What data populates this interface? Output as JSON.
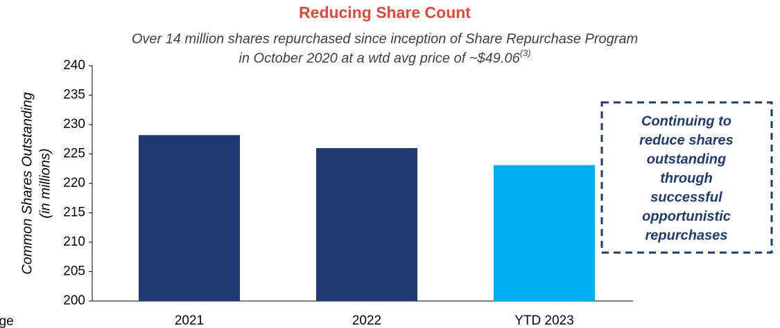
{
  "chart_data": {
    "type": "bar",
    "title": "Reducing Share Count",
    "subtitle_lines": [
      "Over 14 million shares repurchased since inception of Share Repurchase Program",
      "in October 2020 at a wtd avg price of ~$49.06"
    ],
    "subtitle_superscript": "(3)",
    "y_label_lines": [
      "Common Shares Outstanding",
      "(in millions)"
    ],
    "categories": [
      "2021",
      "2022",
      "YTD 2023"
    ],
    "values": [
      228.2,
      226.0,
      223.1
    ],
    "colors": [
      "#1f3a70",
      "#1f3a70",
      "#00b0f0"
    ],
    "ylim": [
      200,
      240
    ],
    "yticks": [
      200,
      205,
      210,
      215,
      220,
      225,
      230,
      235,
      240
    ],
    "grid": false,
    "annotation_lines": [
      "Continuing to",
      "reduce shares",
      "outstanding",
      "through",
      "successful",
      "opportunistic",
      "repurchases"
    ],
    "footnote_fragment": "age"
  }
}
